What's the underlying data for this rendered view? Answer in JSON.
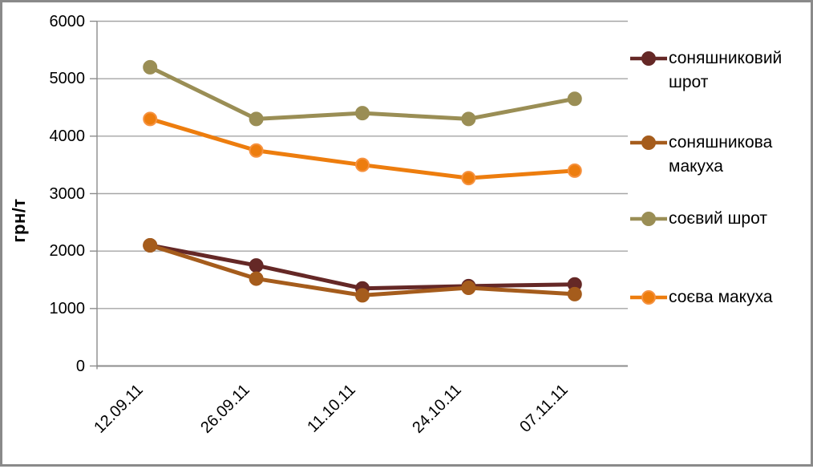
{
  "frame": {
    "border_color": "#8a8a8a",
    "background": "#ffffff",
    "gridline_color": "#a6a6a6",
    "axis_color": "#8c8c8c",
    "text_color": "#000000"
  },
  "chart_data": {
    "type": "line",
    "title": "",
    "xlabel": "",
    "ylabel": "грн/т",
    "ylim": [
      0,
      6000
    ],
    "ytick_step": 1000,
    "ytick_labels": [
      "0",
      "1000",
      "2000",
      "3000",
      "4000",
      "5000",
      "6000"
    ],
    "grid": true,
    "legend_position": "right",
    "categories": [
      "12.09.11",
      "26.09.11",
      "11.10.11",
      "24.10.11",
      "07.11.11"
    ],
    "series": [
      {
        "name": "соняшниковий шрот",
        "color": "#652826",
        "marker_border": "#652826",
        "values": [
          2100,
          1750,
          1350,
          1390,
          1420
        ]
      },
      {
        "name": "соняшникова макуха",
        "color": "#A55C1C",
        "marker_border": "#A55C1C",
        "values": [
          2100,
          1520,
          1230,
          1360,
          1250
        ]
      },
      {
        "name": "соєвий шрот",
        "color": "#9A8E55",
        "marker_border": "#9A8E55",
        "values": [
          5200,
          4300,
          4400,
          4300,
          4650
        ]
      },
      {
        "name": "соєва макуха",
        "color": "#ED7D0E",
        "marker_border": "#F69240",
        "values": [
          4300,
          3750,
          3500,
          3270,
          3400
        ]
      }
    ]
  }
}
